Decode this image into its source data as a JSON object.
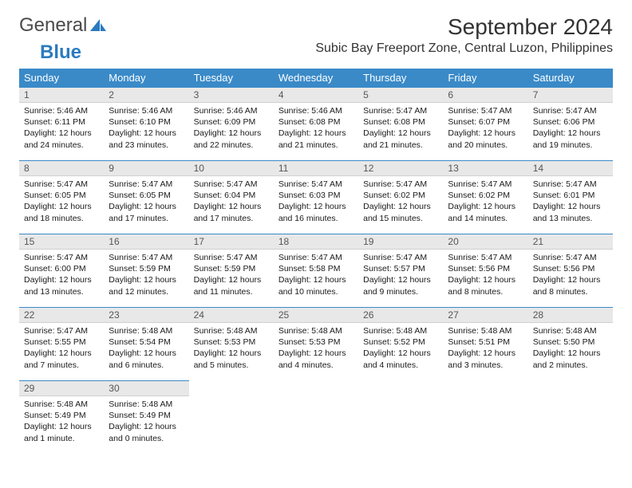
{
  "logo": {
    "part1": "General",
    "part2": "Blue"
  },
  "title": "September 2024",
  "location": "Subic Bay Freeport Zone, Central Luzon, Philippines",
  "colors": {
    "header_bg": "#3a8ac8",
    "header_text": "#ffffff",
    "daynum_bg": "#e8e8e8",
    "border": "#3a8ac8",
    "logo_blue": "#2b7bbf",
    "body_text": "#1a1a1a"
  },
  "weekdays": [
    "Sunday",
    "Monday",
    "Tuesday",
    "Wednesday",
    "Thursday",
    "Friday",
    "Saturday"
  ],
  "start_offset": 0,
  "days": [
    {
      "n": "1",
      "sr": "5:46 AM",
      "ss": "6:11 PM",
      "dl": "12 hours and 24 minutes."
    },
    {
      "n": "2",
      "sr": "5:46 AM",
      "ss": "6:10 PM",
      "dl": "12 hours and 23 minutes."
    },
    {
      "n": "3",
      "sr": "5:46 AM",
      "ss": "6:09 PM",
      "dl": "12 hours and 22 minutes."
    },
    {
      "n": "4",
      "sr": "5:46 AM",
      "ss": "6:08 PM",
      "dl": "12 hours and 21 minutes."
    },
    {
      "n": "5",
      "sr": "5:47 AM",
      "ss": "6:08 PM",
      "dl": "12 hours and 21 minutes."
    },
    {
      "n": "6",
      "sr": "5:47 AM",
      "ss": "6:07 PM",
      "dl": "12 hours and 20 minutes."
    },
    {
      "n": "7",
      "sr": "5:47 AM",
      "ss": "6:06 PM",
      "dl": "12 hours and 19 minutes."
    },
    {
      "n": "8",
      "sr": "5:47 AM",
      "ss": "6:05 PM",
      "dl": "12 hours and 18 minutes."
    },
    {
      "n": "9",
      "sr": "5:47 AM",
      "ss": "6:05 PM",
      "dl": "12 hours and 17 minutes."
    },
    {
      "n": "10",
      "sr": "5:47 AM",
      "ss": "6:04 PM",
      "dl": "12 hours and 17 minutes."
    },
    {
      "n": "11",
      "sr": "5:47 AM",
      "ss": "6:03 PM",
      "dl": "12 hours and 16 minutes."
    },
    {
      "n": "12",
      "sr": "5:47 AM",
      "ss": "6:02 PM",
      "dl": "12 hours and 15 minutes."
    },
    {
      "n": "13",
      "sr": "5:47 AM",
      "ss": "6:02 PM",
      "dl": "12 hours and 14 minutes."
    },
    {
      "n": "14",
      "sr": "5:47 AM",
      "ss": "6:01 PM",
      "dl": "12 hours and 13 minutes."
    },
    {
      "n": "15",
      "sr": "5:47 AM",
      "ss": "6:00 PM",
      "dl": "12 hours and 13 minutes."
    },
    {
      "n": "16",
      "sr": "5:47 AM",
      "ss": "5:59 PM",
      "dl": "12 hours and 12 minutes."
    },
    {
      "n": "17",
      "sr": "5:47 AM",
      "ss": "5:59 PM",
      "dl": "12 hours and 11 minutes."
    },
    {
      "n": "18",
      "sr": "5:47 AM",
      "ss": "5:58 PM",
      "dl": "12 hours and 10 minutes."
    },
    {
      "n": "19",
      "sr": "5:47 AM",
      "ss": "5:57 PM",
      "dl": "12 hours and 9 minutes."
    },
    {
      "n": "20",
      "sr": "5:47 AM",
      "ss": "5:56 PM",
      "dl": "12 hours and 8 minutes."
    },
    {
      "n": "21",
      "sr": "5:47 AM",
      "ss": "5:56 PM",
      "dl": "12 hours and 8 minutes."
    },
    {
      "n": "22",
      "sr": "5:47 AM",
      "ss": "5:55 PM",
      "dl": "12 hours and 7 minutes."
    },
    {
      "n": "23",
      "sr": "5:48 AM",
      "ss": "5:54 PM",
      "dl": "12 hours and 6 minutes."
    },
    {
      "n": "24",
      "sr": "5:48 AM",
      "ss": "5:53 PM",
      "dl": "12 hours and 5 minutes."
    },
    {
      "n": "25",
      "sr": "5:48 AM",
      "ss": "5:53 PM",
      "dl": "12 hours and 4 minutes."
    },
    {
      "n": "26",
      "sr": "5:48 AM",
      "ss": "5:52 PM",
      "dl": "12 hours and 4 minutes."
    },
    {
      "n": "27",
      "sr": "5:48 AM",
      "ss": "5:51 PM",
      "dl": "12 hours and 3 minutes."
    },
    {
      "n": "28",
      "sr": "5:48 AM",
      "ss": "5:50 PM",
      "dl": "12 hours and 2 minutes."
    },
    {
      "n": "29",
      "sr": "5:48 AM",
      "ss": "5:49 PM",
      "dl": "12 hours and 1 minute."
    },
    {
      "n": "30",
      "sr": "5:48 AM",
      "ss": "5:49 PM",
      "dl": "12 hours and 0 minutes."
    }
  ],
  "labels": {
    "sunrise": "Sunrise:",
    "sunset": "Sunset:",
    "daylight": "Daylight:"
  }
}
